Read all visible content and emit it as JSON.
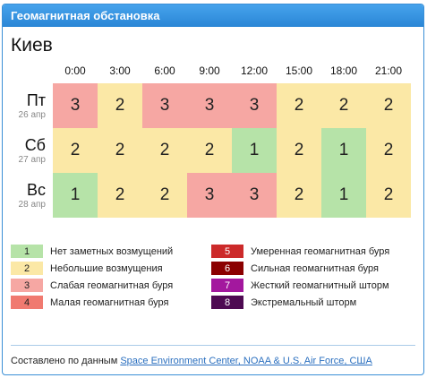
{
  "header": {
    "title": "Геомагнитная обстановка"
  },
  "city": "Киев",
  "hours": [
    "0:00",
    "3:00",
    "6:00",
    "9:00",
    "12:00",
    "15:00",
    "18:00",
    "21:00"
  ],
  "days": [
    {
      "name": "Пт",
      "date": "26 апр",
      "values": [
        "3",
        "2",
        "3",
        "3",
        "3",
        "2",
        "2",
        "2"
      ]
    },
    {
      "name": "Сб",
      "date": "27 апр",
      "values": [
        "2",
        "2",
        "2",
        "2",
        "1",
        "2",
        "1",
        "2"
      ]
    },
    {
      "name": "Вс",
      "date": "28 апр",
      "values": [
        "1",
        "2",
        "2",
        "3",
        "3",
        "2",
        "1",
        "2"
      ]
    }
  ],
  "level_colors": {
    "1": "#b6e3a8",
    "2": "#fbe8a6",
    "3": "#f6a7a3",
    "4": "#f07a70",
    "5": "#cc2a2a",
    "6": "#8b0000",
    "7": "#a3189e",
    "8": "#4e0a52"
  },
  "legend": {
    "left": [
      {
        "level": "1",
        "text": "Нет заметных возмущений"
      },
      {
        "level": "2",
        "text": "Небольшие возмущения"
      },
      {
        "level": "3",
        "text": "Слабая геомагнитная буря"
      },
      {
        "level": "4",
        "text": "Малая геомагнитная буря"
      }
    ],
    "right": [
      {
        "level": "5",
        "text": "Умеренная геомагнитная буря"
      },
      {
        "level": "6",
        "text": "Сильная геомагнитная буря"
      },
      {
        "level": "7",
        "text": "Жесткий геомагнитный шторм"
      },
      {
        "level": "8",
        "text": "Экстремальный шторм"
      }
    ]
  },
  "footer": {
    "prefix": "Составлено по данным",
    "link_text": "Space Environment Center, NOAA & U.S. Air Force, США"
  }
}
